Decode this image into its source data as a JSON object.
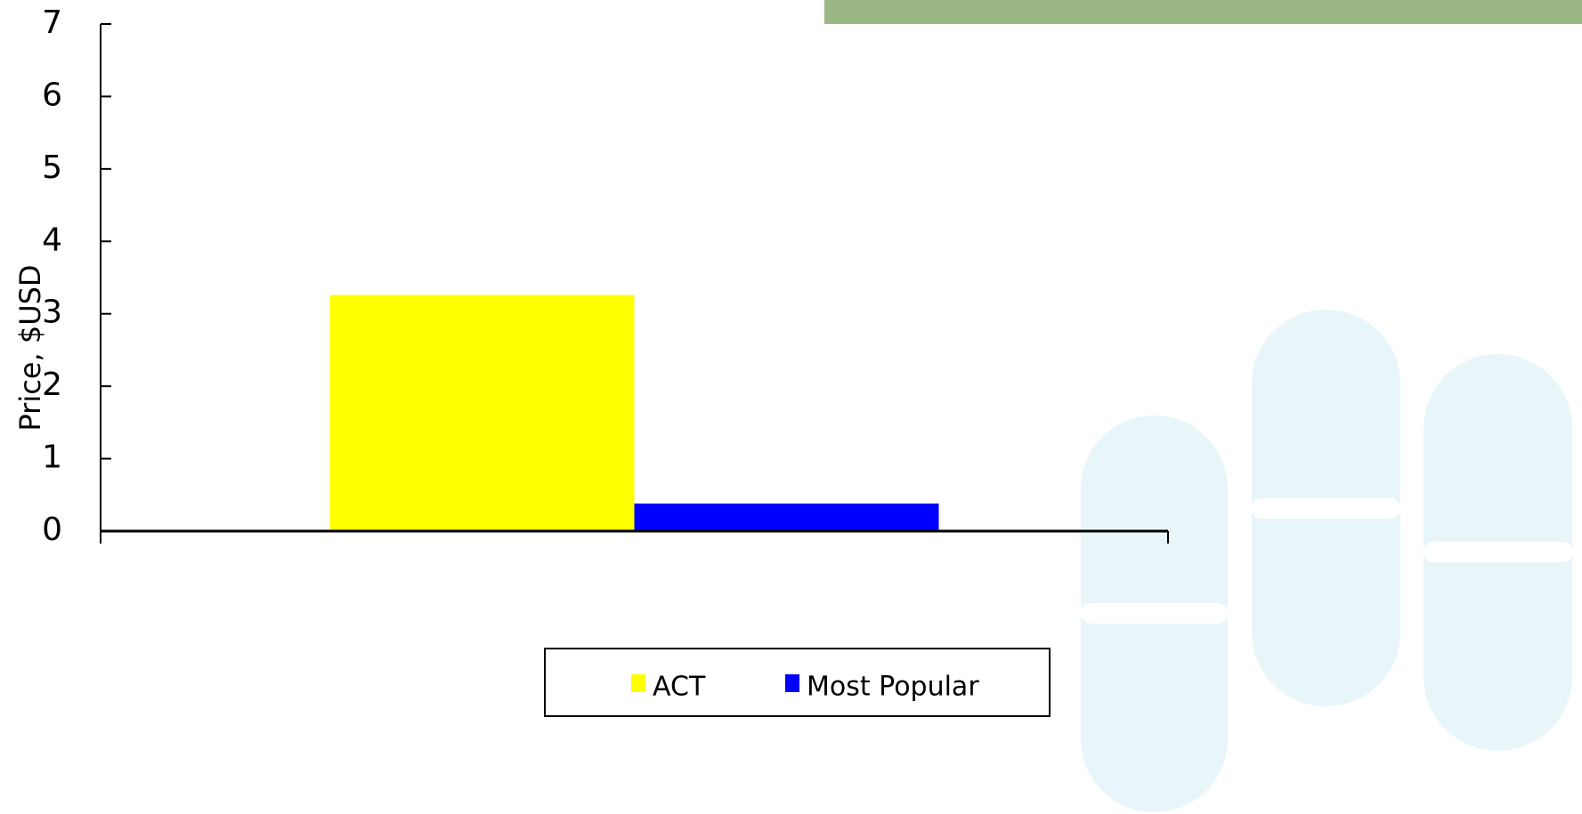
{
  "chart_data": {
    "type": "bar",
    "y_label": "Price, $USD",
    "categories": [
      null
    ],
    "series": [
      {
        "name": "ACT",
        "color": "#ffff00",
        "values": [
          3.26
        ]
      },
      {
        "name": "Most Popular",
        "color": "#0000ff",
        "values": [
          0.38
        ]
      }
    ],
    "ylim": [
      0,
      7
    ],
    "yticks": [
      0,
      1,
      2,
      3,
      4,
      5,
      6,
      7
    ],
    "grid": false,
    "legend": "bottom"
  }
}
